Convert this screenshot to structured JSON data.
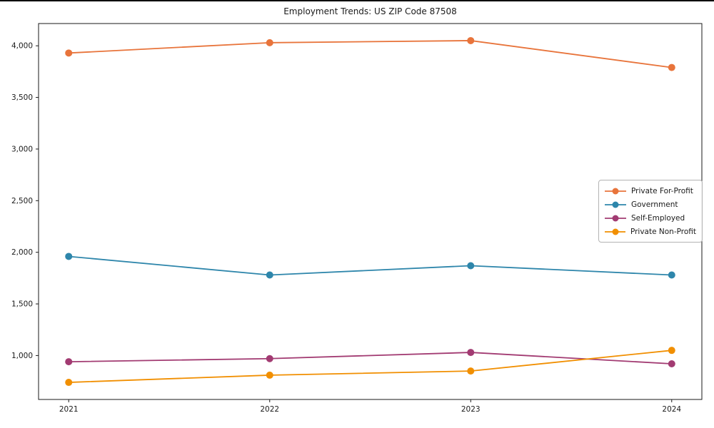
{
  "figure_title": "Employment Trends: US ZIP Code 87508",
  "chart_data": {
    "type": "line",
    "title": "Employment Trends: US ZIP Code 87508",
    "xlabel": "",
    "ylabel": "",
    "x": [
      2021,
      2022,
      2023,
      2024
    ],
    "x_tick_labels": [
      "2021",
      "2022",
      "2023",
      "2024"
    ],
    "series": [
      {
        "name": "Private For-Profit",
        "color": "#E8743B",
        "values": [
          3930,
          4030,
          4050,
          3790
        ]
      },
      {
        "name": "Government",
        "color": "#2E86AB",
        "values": [
          1960,
          1780,
          1870,
          1780
        ]
      },
      {
        "name": "Self-Employed",
        "color": "#A23B72",
        "values": [
          940,
          970,
          1030,
          920
        ]
      },
      {
        "name": "Private Non-Profit",
        "color": "#F18F01",
        "values": [
          740,
          810,
          850,
          1050
        ]
      }
    ],
    "yticks": [
      1000,
      1500,
      2000,
      2500,
      3000,
      3500,
      4000
    ],
    "ytick_labels": [
      "1,000",
      "1,500",
      "2,000",
      "2,500",
      "3,000",
      "3,500",
      "4,000"
    ],
    "xlim": [
      2020.85,
      2024.15
    ],
    "ylim": [
      574.5,
      4215.5
    ],
    "grid": false,
    "legend_position": "center right",
    "marker": "circle",
    "axis_color": "#1a1a1a"
  }
}
